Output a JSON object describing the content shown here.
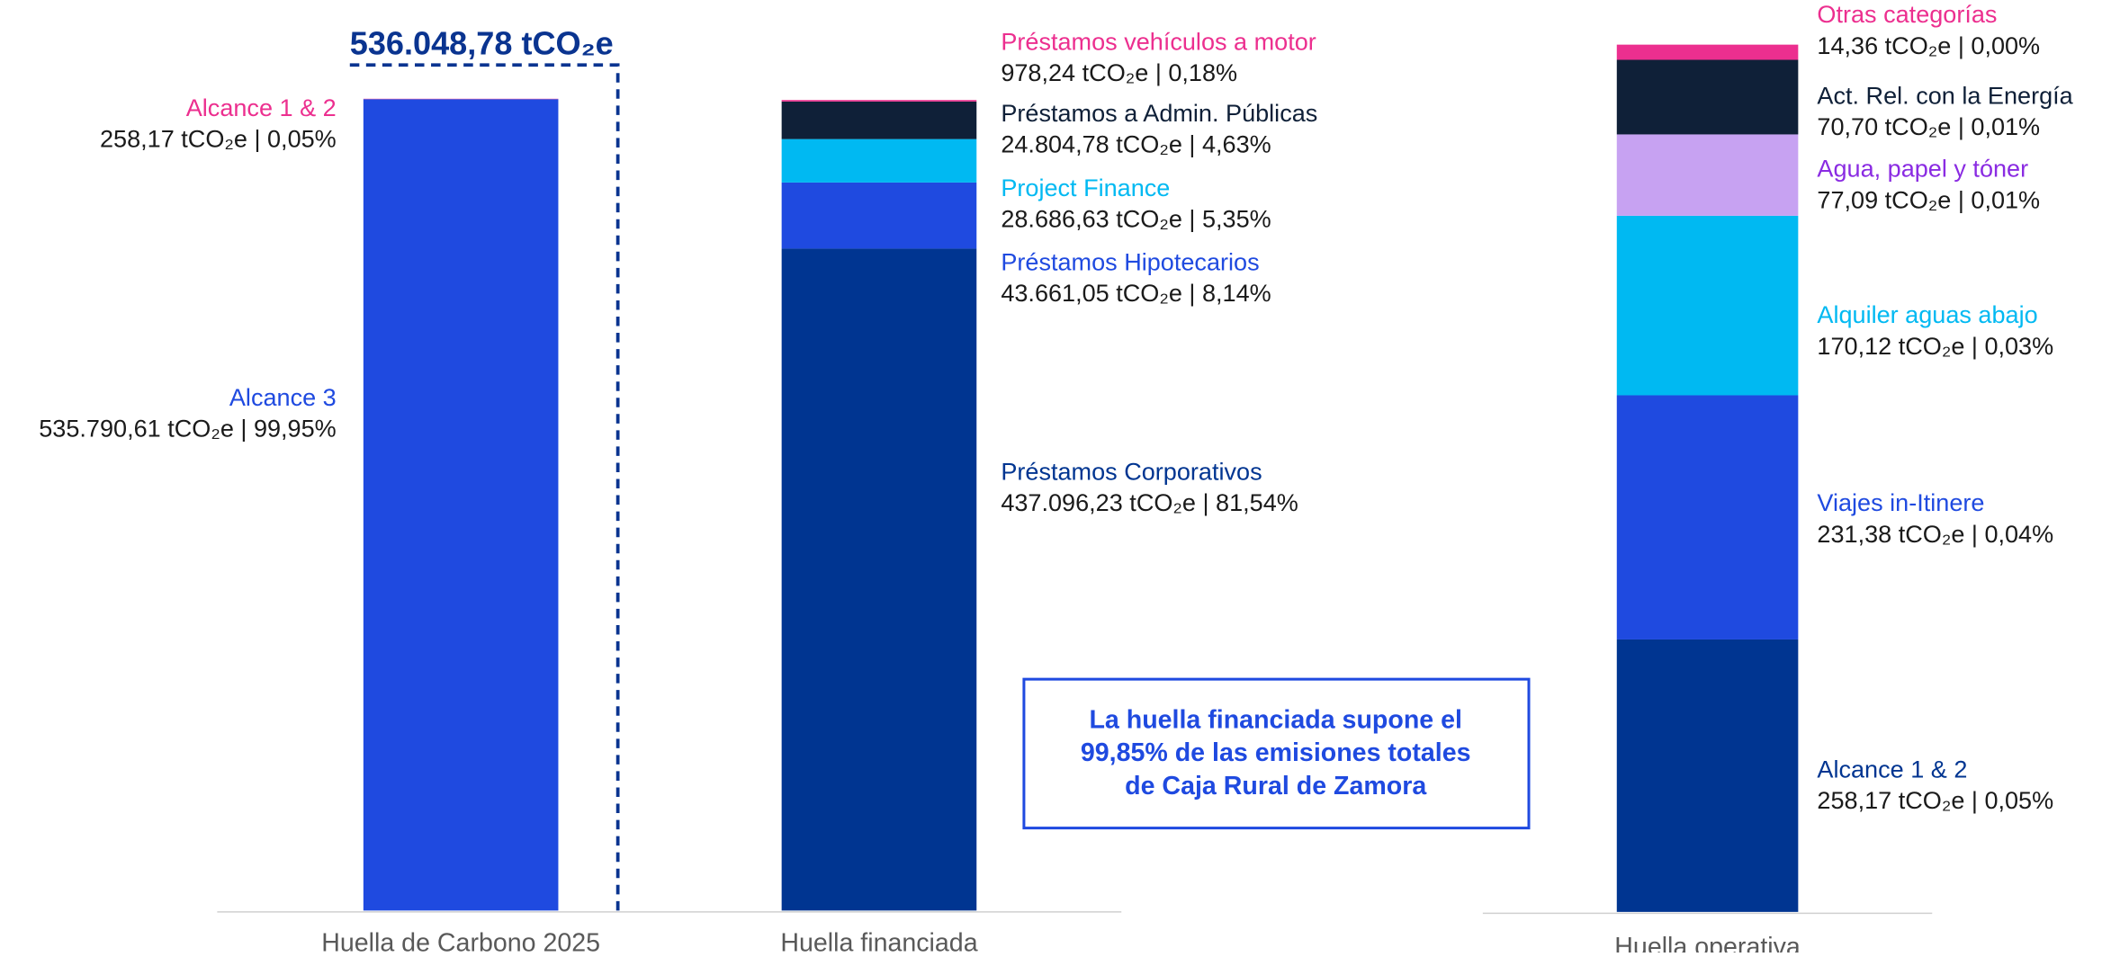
{
  "chart_data": [
    {
      "type": "stacked_bar",
      "total_label": "536.048,78 tCO₂e",
      "categories": [
        "Huella de Carbono 2025",
        "Huella financiada"
      ],
      "stacks": [
        [
          {
            "name": "Alcance 3",
            "color": "#1f4ae0",
            "value": 535790.61,
            "value_label": "535.790,61 tCO₂e | 99,95%"
          },
          {
            "name": "Alcance 1 & 2",
            "color": "#ec2f8f",
            "value": 258.17,
            "value_label": "258,17 tCO₂e | 0,05%"
          }
        ],
        [
          {
            "name": "Préstamos Corporativos",
            "color": "#003591",
            "value": 437096.23,
            "value_label": "437.096,23 tCO₂e | 81,54%"
          },
          {
            "name": "Préstamos Hipotecarios",
            "color": "#1f4ae0",
            "value": 43661.05,
            "value_label": "43.661,05 tCO₂e | 8,14%"
          },
          {
            "name": "Project Finance",
            "color": "#00b9f2",
            "value": 28686.63,
            "value_label": "28.686,63 tCO₂e | 5,35%"
          },
          {
            "name": "Préstamos a Admin. Públicas",
            "color": "#0f2038",
            "value": 24804.78,
            "value_label": "24.804,78 tCO₂e | 4,63%"
          },
          {
            "name": "Préstamos vehículos a motor",
            "color": "#ec2f8f",
            "value": 978.24,
            "value_label": "978,24 tCO₂e | 0,18%"
          }
        ]
      ]
    },
    {
      "type": "stacked_bar",
      "categories": [
        "Huella operativa"
      ],
      "stacks": [
        [
          {
            "name": "Alcance 1 & 2",
            "color": "#003591",
            "value": 258.17,
            "value_label": "258,17 tCO₂e | 0,05%"
          },
          {
            "name": "Viajes in-Itinere",
            "color": "#1f4ae0",
            "value": 231.38,
            "value_label": "231,38 tCO₂e | 0,04%"
          },
          {
            "name": "Alquiler aguas abajo",
            "color": "#00b9f2",
            "value": 170.12,
            "value_label": "170,12 tCO₂e | 0,03%"
          },
          {
            "name": "Agua, papel y tóner",
            "color": "#c7a2f2",
            "name_color": "#8a2be2",
            "value": 77.09,
            "value_label": "77,09 tCO₂e | 0,01%"
          },
          {
            "name": "Act. Rel. con la Energía",
            "color": "#0f2038",
            "value": 70.7,
            "value_label": "70,70 tCO₂e | 0,01%"
          },
          {
            "name": "Otras categorías",
            "color": "#ec2f8f",
            "value": 14.36,
            "value_label": "14,36 tCO₂e | 0,00%"
          }
        ]
      ]
    }
  ],
  "annotation": [
    "La huella financiada supone el",
    "99,85% de las emisiones totales",
    "de Caja Rural de Zamora"
  ]
}
